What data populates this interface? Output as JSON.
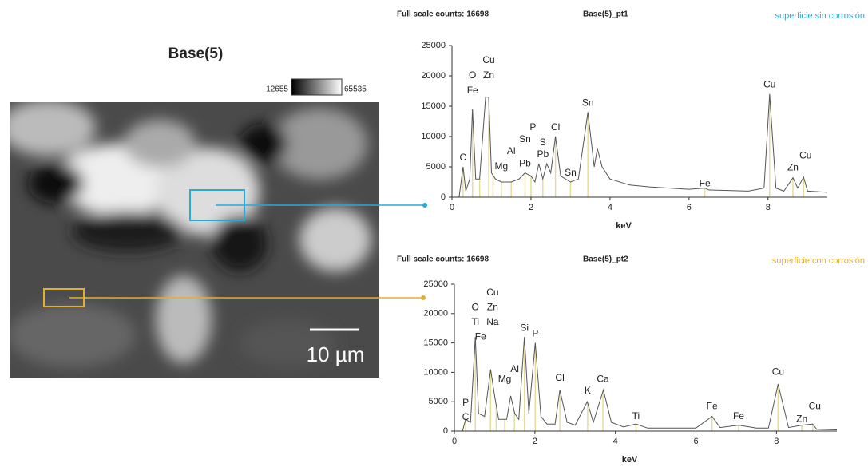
{
  "image": {
    "title": "Base(5)",
    "colorbar_min": 12655,
    "colorbar_max": 65535,
    "scale_bar": "10 µm"
  },
  "chart_data": [
    {
      "type": "line",
      "title": "Full scale counts: 16698",
      "subtitle": "Base(5)_pt1",
      "note": "superficie sin corrosión",
      "note_color": "#29a9d6",
      "xlabel": "keV",
      "xlim": [
        0,
        9.5
      ],
      "xticks": [
        0,
        2,
        4,
        6,
        8
      ],
      "ylim": [
        0,
        25000
      ],
      "yticks": [
        0,
        5000,
        10000,
        15000,
        20000,
        25000
      ],
      "color": "#555555",
      "peak_line_color": "#e6dc9a",
      "x": [
        0.1,
        0.18,
        0.28,
        0.35,
        0.45,
        0.52,
        0.6,
        0.7,
        0.85,
        0.93,
        1.0,
        1.1,
        1.25,
        1.5,
        1.7,
        1.85,
        2.0,
        2.1,
        2.2,
        2.3,
        2.4,
        2.5,
        2.62,
        2.75,
        3.0,
        3.2,
        3.44,
        3.6,
        3.68,
        3.8,
        4.0,
        4.5,
        5,
        5.5,
        6.0,
        6.4,
        6.5,
        7,
        7.5,
        7.9,
        8.04,
        8.2,
        8.4,
        8.63,
        8.75,
        8.9,
        9.0,
        9.5
      ],
      "values": [
        0,
        0,
        5000,
        1000,
        3000,
        14500,
        3000,
        3000,
        16500,
        16500,
        4000,
        3000,
        2500,
        2500,
        3000,
        4000,
        3500,
        2500,
        5500,
        3000,
        5500,
        4000,
        10000,
        3500,
        2500,
        3000,
        14000,
        5000,
        8000,
        5000,
        3000,
        2000,
        1700,
        1500,
        1300,
        1500,
        1200,
        1100,
        1000,
        1500,
        17000,
        1500,
        1000,
        3200,
        1500,
        3300,
        1000,
        800
      ],
      "peak_lines": [
        0.28,
        0.52,
        0.7,
        0.93,
        1.04,
        1.25,
        1.5,
        1.85,
        2.0,
        2.3,
        2.62,
        3.0,
        3.44,
        6.4,
        8.04,
        8.63,
        8.9
      ],
      "annotations": [
        {
          "text": "Cu",
          "x": 0.93,
          "y": 22500
        },
        {
          "text": "O",
          "x": 0.52,
          "y": 20000
        },
        {
          "text": "Zn",
          "x": 0.93,
          "y": 20000
        },
        {
          "text": "Fe",
          "x": 0.52,
          "y": 17500
        },
        {
          "text": "C",
          "x": 0.28,
          "y": 6500
        },
        {
          "text": "Al",
          "x": 1.5,
          "y": 7500
        },
        {
          "text": "Mg",
          "x": 1.25,
          "y": 5000
        },
        {
          "text": "Sn",
          "x": 1.85,
          "y": 9500
        },
        {
          "text": "P",
          "x": 2.05,
          "y": 11500
        },
        {
          "text": "Pb",
          "x": 1.85,
          "y": 5500
        },
        {
          "text": "S",
          "x": 2.3,
          "y": 9000
        },
        {
          "text": "Pb",
          "x": 2.3,
          "y": 7000
        },
        {
          "text": "Cl",
          "x": 2.62,
          "y": 11500
        },
        {
          "text": "Sn",
          "x": 3.0,
          "y": 4000
        },
        {
          "text": "Sn",
          "x": 3.44,
          "y": 15500
        },
        {
          "text": "Fe",
          "x": 6.4,
          "y": 2200
        },
        {
          "text": "Cu",
          "x": 8.04,
          "y": 18500
        },
        {
          "text": "Cu",
          "x": 8.95,
          "y": 6800
        },
        {
          "text": "Zn",
          "x": 8.63,
          "y": 4800
        }
      ]
    },
    {
      "type": "line",
      "title": "Full scale counts: 16698",
      "subtitle": "Base(5)_pt2",
      "note": "superficie con corrosión",
      "note_color": "#e0b030",
      "xlabel": "keV",
      "xlim": [
        0,
        9.5
      ],
      "xticks": [
        0,
        2,
        4,
        6,
        8
      ],
      "ylim": [
        0,
        25000
      ],
      "yticks": [
        0,
        5000,
        10000,
        15000,
        20000,
        25000
      ],
      "color": "#555555",
      "peak_line_color": "#e6dc9a",
      "x": [
        0.1,
        0.2,
        0.28,
        0.4,
        0.52,
        0.6,
        0.75,
        0.9,
        1.0,
        1.1,
        1.3,
        1.4,
        1.5,
        1.6,
        1.74,
        1.85,
        2.01,
        2.15,
        2.3,
        2.5,
        2.62,
        2.8,
        3.0,
        3.3,
        3.45,
        3.7,
        3.9,
        4.2,
        4.51,
        4.8,
        5.5,
        6.0,
        6.4,
        6.6,
        7.06,
        7.5,
        7.8,
        8.04,
        8.3,
        8.63,
        8.9,
        9.0,
        9.5
      ],
      "values": [
        0,
        0,
        2000,
        1500,
        16000,
        3000,
        2500,
        10500,
        6000,
        2000,
        2000,
        6000,
        3000,
        2000,
        16000,
        3000,
        15000,
        2500,
        1200,
        1200,
        7000,
        1500,
        1000,
        5000,
        1500,
        7000,
        1500,
        700,
        1200,
        500,
        500,
        500,
        2500,
        600,
        1000,
        500,
        500,
        8000,
        600,
        1000,
        1200,
        300,
        200
      ],
      "peak_lines": [
        0.28,
        0.52,
        0.9,
        1.04,
        1.25,
        1.49,
        1.74,
        2.01,
        2.62,
        3.31,
        3.69,
        4.51,
        6.4,
        7.06,
        8.04,
        8.63,
        8.9
      ],
      "annotations": [
        {
          "text": "P",
          "x": 0.28,
          "y": 4800
        },
        {
          "text": "C",
          "x": 0.28,
          "y": 2300
        },
        {
          "text": "Cu",
          "x": 0.95,
          "y": 23500
        },
        {
          "text": "O",
          "x": 0.52,
          "y": 21000
        },
        {
          "text": "Zn",
          "x": 0.95,
          "y": 21000
        },
        {
          "text": "Ti",
          "x": 0.52,
          "y": 18500
        },
        {
          "text": "Na",
          "x": 0.95,
          "y": 18500
        },
        {
          "text": "Fe",
          "x": 0.65,
          "y": 16000
        },
        {
          "text": "Mg",
          "x": 1.25,
          "y": 8800
        },
        {
          "text": "Al",
          "x": 1.5,
          "y": 10500
        },
        {
          "text": "Si",
          "x": 1.74,
          "y": 17500
        },
        {
          "text": "P",
          "x": 2.01,
          "y": 16500
        },
        {
          "text": "Cl",
          "x": 2.62,
          "y": 9000
        },
        {
          "text": "K",
          "x": 3.31,
          "y": 6800
        },
        {
          "text": "Ca",
          "x": 3.69,
          "y": 8800
        },
        {
          "text": "Ti",
          "x": 4.51,
          "y": 2500
        },
        {
          "text": "Fe",
          "x": 6.4,
          "y": 4200
        },
        {
          "text": "Fe",
          "x": 7.06,
          "y": 2500
        },
        {
          "text": "Cu",
          "x": 8.04,
          "y": 10000
        },
        {
          "text": "Zn",
          "x": 8.63,
          "y": 2000
        },
        {
          "text": "Cu",
          "x": 8.95,
          "y": 4200
        }
      ]
    }
  ]
}
